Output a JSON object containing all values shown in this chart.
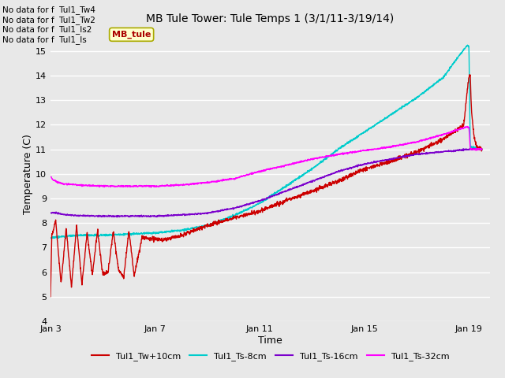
{
  "title": "MB Tule Tower: Tule Temps 1 (3/1/11-3/19/14)",
  "xlabel": "Time",
  "ylabel": "Temperature (C)",
  "ylim": [
    4.0,
    16.0
  ],
  "yticks": [
    4.0,
    5.0,
    6.0,
    7.0,
    8.0,
    9.0,
    10.0,
    11.0,
    12.0,
    13.0,
    14.0,
    15.0
  ],
  "xtick_labels": [
    "Jan 3",
    "Jan 7",
    "Jan 11",
    "Jan 15",
    "Jan 19"
  ],
  "xtick_positions": [
    3,
    7,
    11,
    15,
    19
  ],
  "xlim": [
    3.0,
    19.8
  ],
  "no_data_lines": [
    "No data for f  Tul1_Tw4",
    "No data for f  Tul1_Tw2",
    "No data for f  Tul1_Is2",
    "No data for f  Tul1_Is"
  ],
  "colors": {
    "tw": "#cc0000",
    "ts8": "#00cccc",
    "ts16": "#7b00cc",
    "ts32": "#ff00ff"
  },
  "background_color": "#e8e8e8",
  "grid_color": "#ffffff",
  "tooltip_text": "MB_tule",
  "tooltip_bg": "#ffffcc",
  "legend_labels": [
    "Tul1_Tw+10cm",
    "Tul1_Ts-8cm",
    "Tul1_Ts-16cm",
    "Tul1_Ts-32cm"
  ]
}
